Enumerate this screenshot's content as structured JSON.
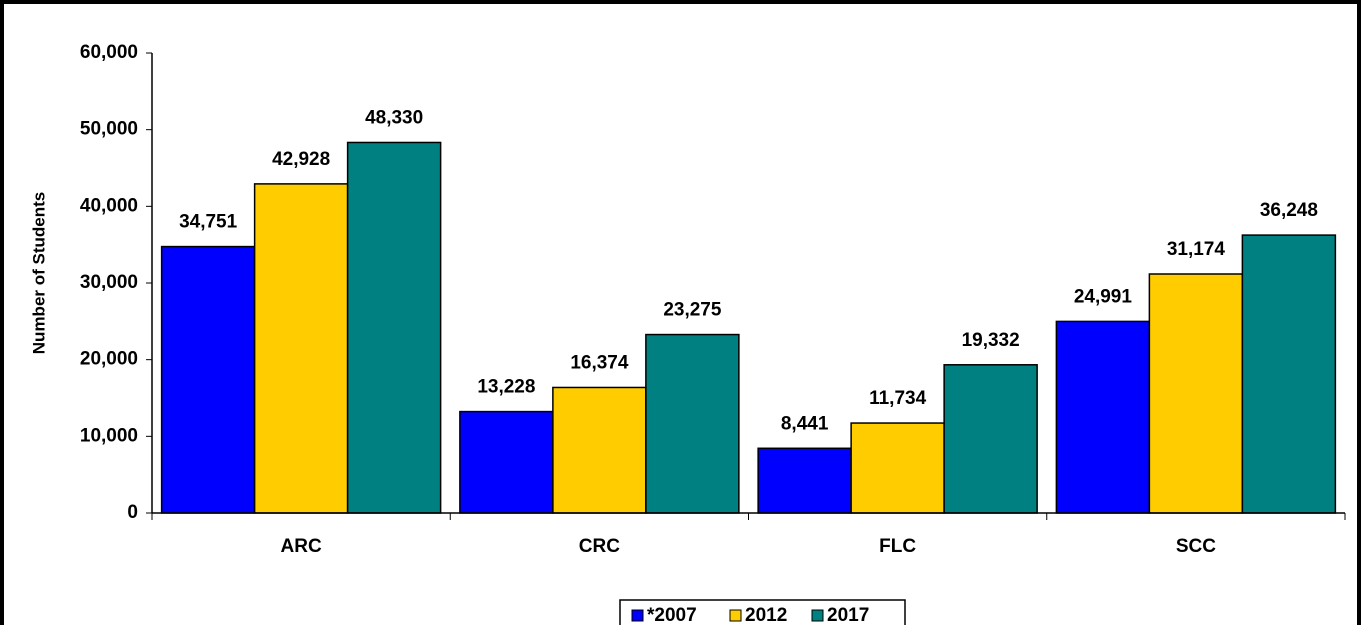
{
  "chart_data": {
    "type": "bar",
    "y_axis_label": "Number of Students",
    "categories": [
      "ARC",
      "CRC",
      "FLC",
      "SCC"
    ],
    "series": [
      {
        "name": "*2007",
        "color": "#0000ff",
        "values": [
          34751,
          13228,
          8441,
          24991
        ],
        "value_labels": [
          "34,751",
          "13,228",
          "8,441",
          "24,991"
        ]
      },
      {
        "name": "2012",
        "color": "#ffcc00",
        "values": [
          42928,
          16374,
          11734,
          31174
        ],
        "value_labels": [
          "42,928",
          "16,374",
          "11,734",
          "31,174"
        ]
      },
      {
        "name": "2017",
        "color": "#008080",
        "values": [
          48330,
          23275,
          19332,
          36248
        ],
        "value_labels": [
          "48,330",
          "23,275",
          "19,332",
          "36,248"
        ]
      }
    ],
    "ylim": [
      0,
      60000
    ],
    "yticks": [
      0,
      {
        "value": 10000,
        "label": "10,000"
      },
      {
        "value": 20000,
        "label": "20,000"
      },
      {
        "value": 30000,
        "label": "30,000"
      },
      {
        "value": 40000,
        "label": "40,000"
      },
      {
        "value": 50000,
        "label": "50,000"
      },
      {
        "value": 60000,
        "label": "60,000"
      }
    ],
    "legend": "bottom"
  }
}
